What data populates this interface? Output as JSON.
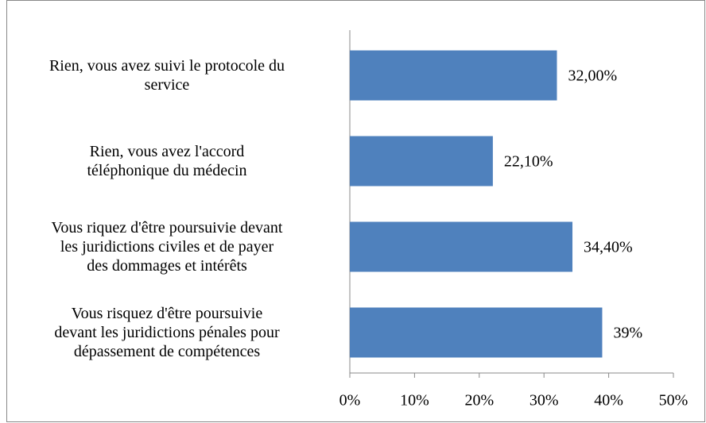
{
  "chart_data": {
    "type": "bar",
    "orientation": "horizontal",
    "categories": [
      "Rien, vous avez suivi le protocole du\nservice",
      "Rien, vous avez l'accord\ntéléphonique du médecin",
      "Vous riquez d'être poursuivie devant\nles juridictions civiles et de payer\ndes dommages et intérêts",
      "Vous risquez d'être poursuivie\ndevant les juridictions pénales pour\ndépassement de compétences"
    ],
    "values": [
      32,
      22.1,
      34.4,
      39
    ],
    "value_labels": [
      "32,00%",
      "22,10%",
      "34,40%",
      "39%"
    ],
    "color": "#4f81bd",
    "xlim": [
      0,
      50
    ],
    "xticks": [
      {
        "value": 0,
        "label": "0%"
      },
      {
        "value": 10,
        "label": "10%"
      },
      {
        "value": 20,
        "label": "20%"
      },
      {
        "value": 30,
        "label": "30%"
      },
      {
        "value": 40,
        "label": "40%"
      },
      {
        "value": 50,
        "label": "50%"
      }
    ],
    "grid": false
  }
}
